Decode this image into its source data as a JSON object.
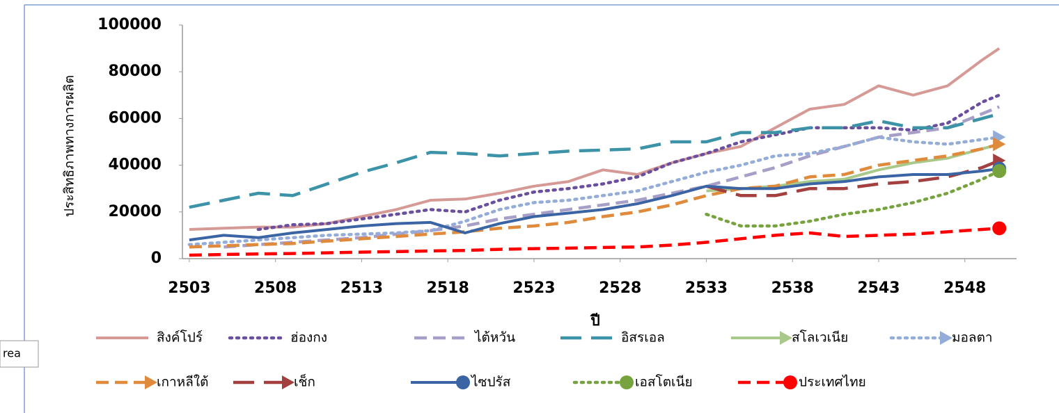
{
  "chart_data": {
    "type": "line",
    "y_label": "ประสิทธิภาพทางการผลิต",
    "x_label": "ปี",
    "tooltip": "rea",
    "x": [
      2503,
      2505,
      2507,
      2509,
      2511,
      2513,
      2515,
      2517,
      2519,
      2521,
      2523,
      2525,
      2527,
      2529,
      2531,
      2533,
      2535,
      2537,
      2539,
      2541,
      2543,
      2545,
      2547,
      2549,
      2550
    ],
    "xlim": [
      2502.6,
      2551
    ],
    "xticks": [
      2503,
      2508,
      2513,
      2518,
      2523,
      2528,
      2533,
      2538,
      2543,
      2548
    ],
    "ylim": [
      0,
      100000
    ],
    "yticks": [
      0,
      20000,
      40000,
      60000,
      80000,
      100000
    ],
    "series": [
      {
        "name": "สิงค์โปร์",
        "color": "#d69a96",
        "dash": "solid",
        "end_marker": "none",
        "values": [
          12500,
          13000,
          13500,
          13500,
          15000,
          18000,
          21000,
          25000,
          25500,
          28000,
          31000,
          33000,
          38000,
          36000,
          41000,
          45000,
          48000,
          56000,
          64000,
          66000,
          74000,
          70000,
          74000,
          85000,
          90000
        ]
      },
      {
        "name": "ฮ่องกง",
        "color": "#6a4f9e",
        "dash": "dot",
        "end_marker": "none",
        "values": [
          null,
          null,
          12500,
          14500,
          15000,
          17000,
          19000,
          21000,
          20000,
          25000,
          28500,
          30000,
          32000,
          35000,
          41000,
          45000,
          50000,
          53000,
          56000,
          56000,
          56000,
          55000,
          58000,
          67000,
          70000
        ]
      },
      {
        "name": "ไต้หวัน",
        "color": "#a89fc8",
        "dash": "dash",
        "end_marker": "none",
        "values": [
          null,
          5000,
          6000,
          7000,
          8000,
          9000,
          10500,
          12000,
          14000,
          17000,
          19000,
          21000,
          23000,
          25000,
          28000,
          31000,
          35000,
          39000,
          44000,
          48000,
          52000,
          54000,
          56000,
          62000,
          65000
        ]
      },
      {
        "name": "อิสรเอล",
        "color": "#3c93a8",
        "dash": "longdash",
        "end_marker": "none",
        "values": [
          22000,
          25000,
          28000,
          27000,
          32000,
          37000,
          41000,
          45500,
          45000,
          44000,
          45000,
          46000,
          46500,
          47000,
          50000,
          50000,
          54000,
          54000,
          56000,
          56000,
          59000,
          56000,
          56000,
          60000,
          62000
        ]
      },
      {
        "name": "สโลเวเนีย",
        "color": "#a9c98a",
        "dash": "solid",
        "end_marker": "arrow",
        "values": [
          null,
          null,
          null,
          null,
          null,
          null,
          null,
          null,
          null,
          null,
          null,
          null,
          null,
          null,
          null,
          29000,
          30000,
          31000,
          33000,
          34000,
          38000,
          41000,
          43000,
          47000,
          49000
        ]
      },
      {
        "name": "มอลตา",
        "color": "#93acd8",
        "dash": "dot",
        "end_marker": "arrow",
        "values": [
          6000,
          7000,
          8000,
          9000,
          10000,
          10500,
          11000,
          12000,
          16000,
          21000,
          24000,
          25000,
          27000,
          29000,
          33000,
          37000,
          40000,
          44000,
          45000,
          48000,
          52000,
          50000,
          49000,
          51000,
          52000
        ]
      },
      {
        "name": "เกาหลีใต้",
        "color": "#e08b3c",
        "dash": "dash",
        "end_marker": "arrow",
        "values": [
          5000,
          5500,
          6000,
          6500,
          7500,
          8500,
          9500,
          10500,
          11500,
          13000,
          14000,
          15500,
          18000,
          20000,
          23000,
          27000,
          30000,
          31000,
          35000,
          36000,
          40000,
          42000,
          44000,
          47000,
          49000
        ]
      },
      {
        "name": "เช็ก",
        "color": "#a33f3f",
        "dash": "longdash",
        "end_marker": "arrow",
        "values": [
          null,
          null,
          null,
          null,
          null,
          null,
          null,
          null,
          null,
          null,
          null,
          null,
          null,
          null,
          null,
          31000,
          27000,
          27000,
          30000,
          30000,
          32000,
          33000,
          35000,
          39000,
          42000
        ]
      },
      {
        "name": "ไซปรัส",
        "color": "#3a64a4",
        "dash": "solid",
        "end_marker": "circle",
        "values": [
          8000,
          10000,
          9000,
          11000,
          12500,
          14000,
          15000,
          15500,
          11000,
          15000,
          18000,
          19500,
          21000,
          23500,
          27000,
          31000,
          30000,
          30000,
          32000,
          33000,
          35000,
          36000,
          36000,
          37500,
          38500
        ]
      },
      {
        "name": "เอสโตเนีย",
        "color": "#77a33f",
        "dash": "dot",
        "end_marker": "circle",
        "values": [
          null,
          null,
          null,
          null,
          null,
          null,
          null,
          null,
          null,
          null,
          null,
          null,
          null,
          null,
          null,
          19000,
          14000,
          14000,
          16000,
          19000,
          21000,
          24000,
          28000,
          34000,
          37500
        ]
      },
      {
        "name": "ประเทศไทย",
        "color": "#ff0000",
        "dash": "dash",
        "end_marker": "circle",
        "values": [
          1500,
          1800,
          2000,
          2200,
          2500,
          2800,
          3000,
          3300,
          3500,
          4000,
          4300,
          4500,
          4800,
          5000,
          5800,
          7000,
          8500,
          10000,
          11000,
          9500,
          10000,
          10500,
          11500,
          12500,
          13000
        ]
      }
    ]
  }
}
